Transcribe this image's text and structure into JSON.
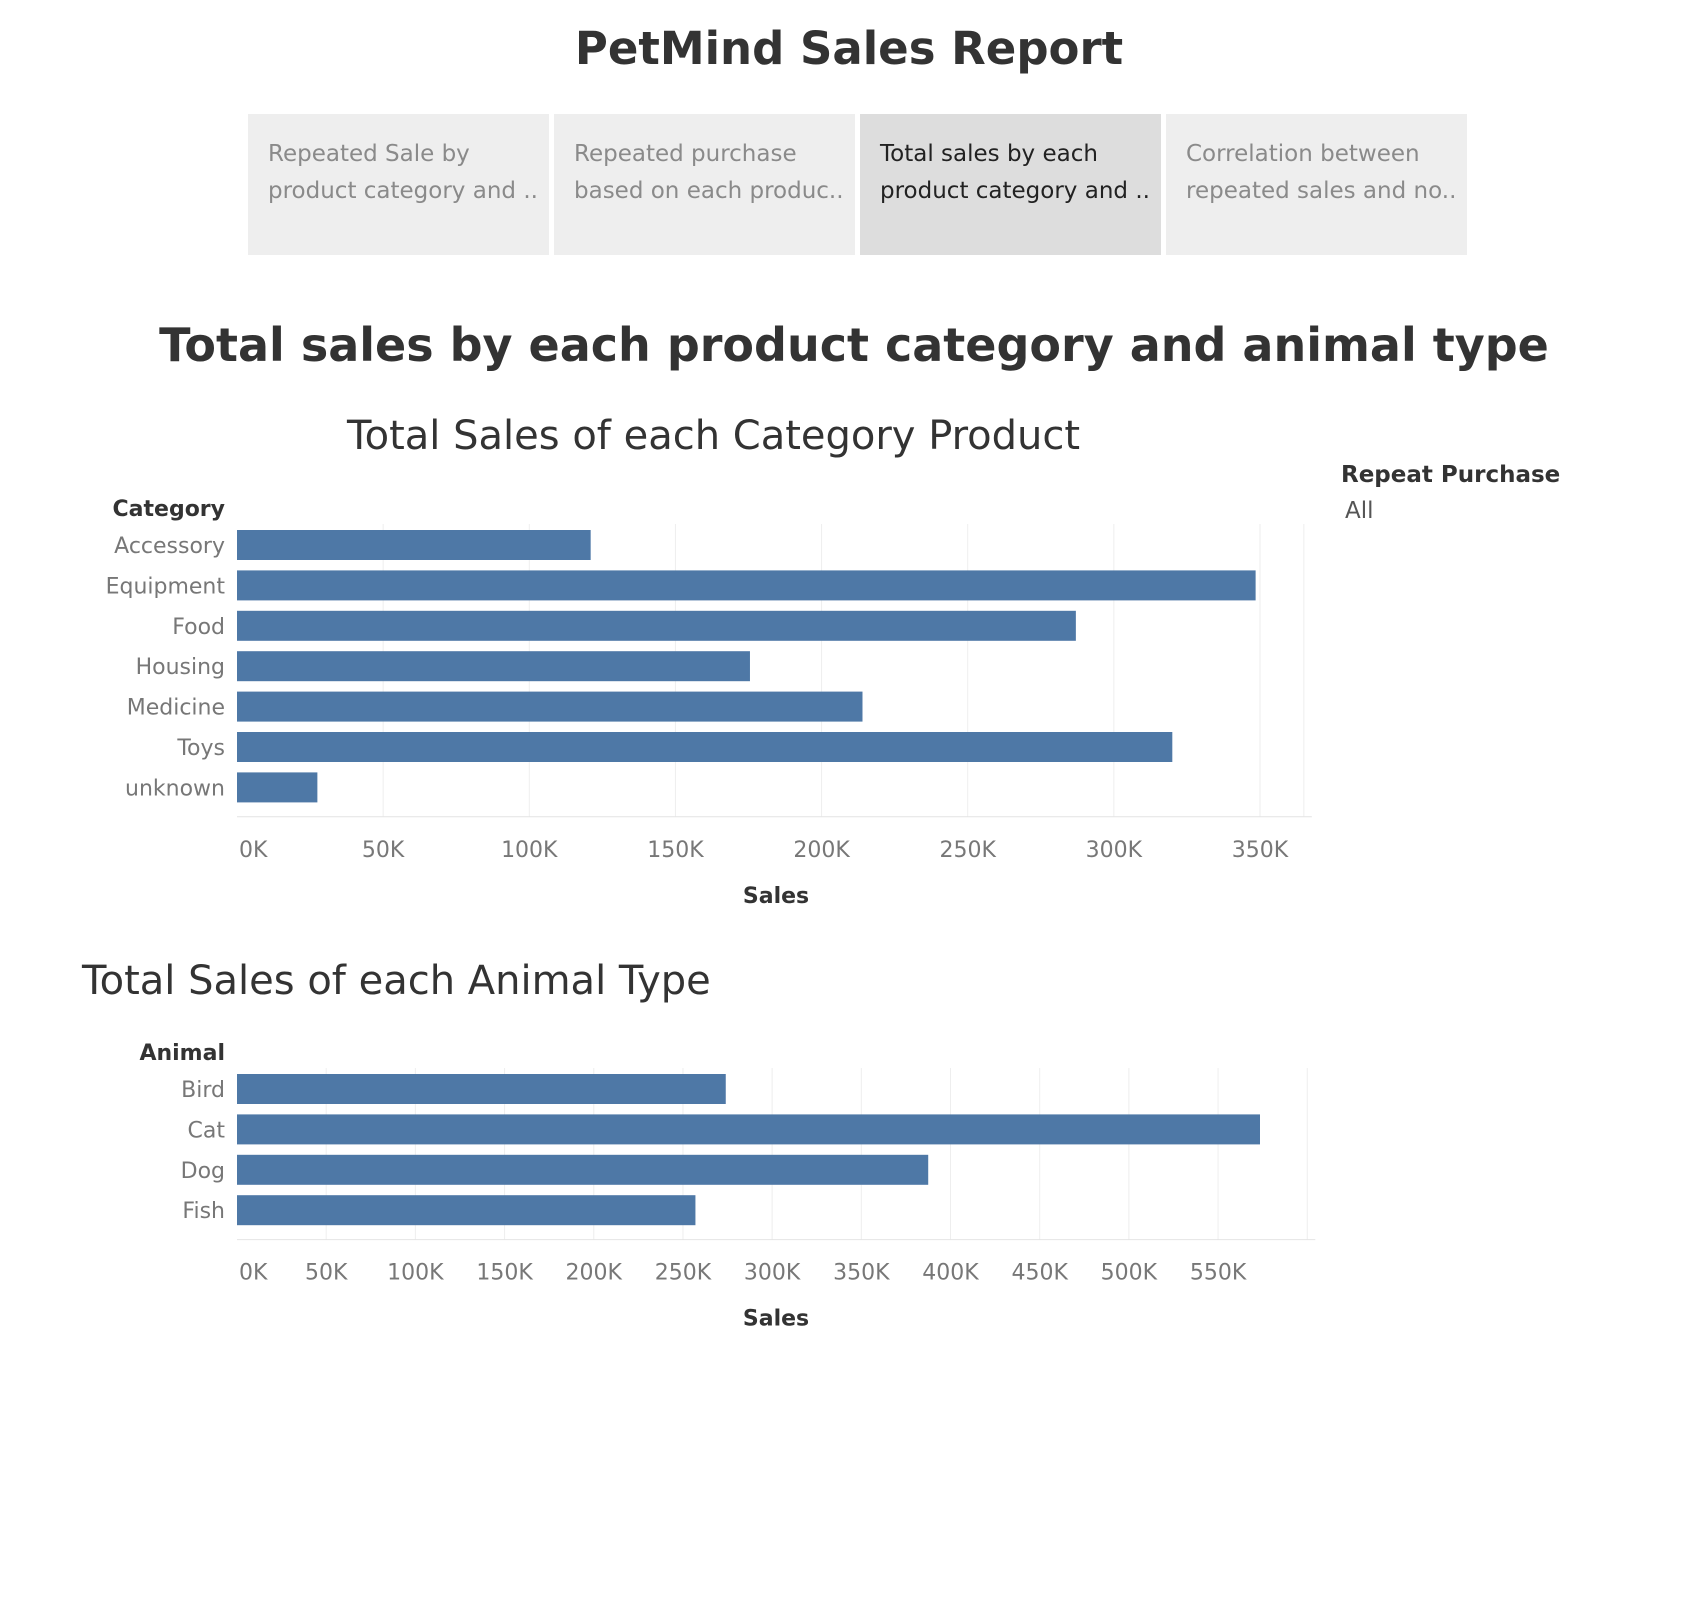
{
  "report": {
    "title": "PetMind Sales Report"
  },
  "tabs": [
    {
      "line1": "Repeated Sale by",
      "line2": "product category and ..",
      "active": false
    },
    {
      "line1": "Repeated purchase",
      "line2": "based on each produc..",
      "active": false
    },
    {
      "line1": "Total sales by each",
      "line2": "product category and ..",
      "active": true
    },
    {
      "line1": "Correlation between",
      "line2": "repeated sales and no..",
      "active": false
    }
  ],
  "dashboard": {
    "title": "Total sales by each product category and animal type"
  },
  "legend": {
    "title": "Repeat Purchase",
    "value": "All"
  },
  "colors": {
    "bar": "#4e78a6",
    "grid": "#eeeeee"
  },
  "chart_data": [
    {
      "type": "bar",
      "orientation": "horizontal",
      "title": "Total Sales of each Category Product",
      "category_header": "Category",
      "categories": [
        "Accessory",
        "Equipment",
        "Food",
        "Housing",
        "Medicine",
        "Toys",
        "unknown"
      ],
      "values": [
        121000,
        348500,
        287000,
        175500,
        214000,
        320000,
        27500
      ],
      "xlabel": "Sales",
      "xlim": [
        0,
        365000
      ],
      "ticks": [
        0,
        50000,
        100000,
        150000,
        200000,
        250000,
        300000,
        350000
      ],
      "tick_labels": [
        "0K",
        "50K",
        "100K",
        "150K",
        "200K",
        "250K",
        "300K",
        "350K"
      ],
      "grid": true
    },
    {
      "type": "bar",
      "orientation": "horizontal",
      "title": "Total Sales of each Animal Type",
      "category_header": "Animal",
      "categories": [
        "Bird",
        "Cat",
        "Dog",
        "Fish"
      ],
      "values": [
        274000,
        573500,
        387500,
        257000
      ],
      "xlabel": "Sales",
      "xlim": [
        0,
        600000
      ],
      "ticks": [
        0,
        50000,
        100000,
        150000,
        200000,
        250000,
        300000,
        350000,
        400000,
        450000,
        500000,
        550000
      ],
      "tick_labels": [
        "0K",
        "50K",
        "100K",
        "150K",
        "200K",
        "250K",
        "300K",
        "350K",
        "400K",
        "450K",
        "500K",
        "550K"
      ],
      "grid": true
    }
  ]
}
